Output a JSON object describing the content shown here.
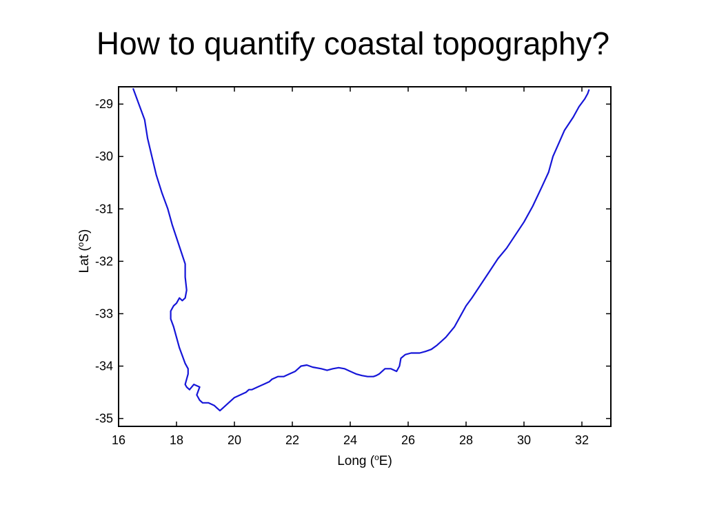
{
  "slide": {
    "title": "How to quantify coastal topography?"
  },
  "chart_data": {
    "type": "line",
    "xlabel": "Long (oE)",
    "ylabel": "Lat (oS)",
    "xlim": [
      16,
      33
    ],
    "ylim": [
      -35.15,
      -28.67
    ],
    "x_ticks": [
      16,
      18,
      20,
      22,
      24,
      26,
      28,
      30,
      32
    ],
    "y_ticks": [
      -29,
      -30,
      -31,
      -32,
      -33,
      -34,
      -35
    ],
    "grid": false,
    "line_color": "#1515d8",
    "series": [
      {
        "x": [
          16.5,
          16.7,
          16.9,
          17.0,
          17.15,
          17.3,
          17.5,
          17.7,
          17.85,
          18.0,
          18.15,
          18.3,
          18.3,
          18.35,
          18.3,
          18.2,
          18.1,
          18.0,
          17.9,
          17.8,
          17.8,
          17.9,
          18.0,
          18.1,
          18.2,
          18.3,
          18.4,
          18.4,
          18.35,
          18.3,
          18.35,
          18.45,
          18.6,
          18.8,
          18.7,
          18.8,
          18.9,
          19.1,
          19.3,
          19.4,
          19.5,
          19.6,
          19.8,
          20.0,
          20.2,
          20.4,
          20.5,
          20.6,
          20.8,
          21.0,
          21.2,
          21.3,
          21.5,
          21.7,
          21.9,
          22.1,
          22.2,
          22.3,
          22.5,
          22.7,
          23.0,
          23.2,
          23.4,
          23.6,
          23.8,
          24.0,
          24.2,
          24.4,
          24.6,
          24.8,
          24.9,
          25.0,
          25.2,
          25.4,
          25.6,
          25.7,
          25.75,
          25.9,
          26.1,
          26.4,
          26.6,
          26.8,
          27.0,
          27.3,
          27.6,
          27.8,
          28.0,
          28.2,
          28.5,
          28.8,
          29.1,
          29.4,
          29.7,
          30.0,
          30.3,
          30.6,
          30.85,
          31.0,
          31.2,
          31.4,
          31.7,
          31.9,
          32.1,
          32.2,
          32.25
        ],
        "y": [
          -28.7,
          -29.0,
          -29.3,
          -29.65,
          -30.0,
          -30.35,
          -30.7,
          -31.0,
          -31.3,
          -31.55,
          -31.8,
          -32.05,
          -32.3,
          -32.55,
          -32.7,
          -32.75,
          -32.7,
          -32.8,
          -32.85,
          -32.95,
          -33.1,
          -33.25,
          -33.45,
          -33.65,
          -33.8,
          -33.95,
          -34.05,
          -34.15,
          -34.25,
          -34.35,
          -34.4,
          -34.45,
          -34.35,
          -34.4,
          -34.55,
          -34.65,
          -34.7,
          -34.7,
          -34.75,
          -34.8,
          -34.85,
          -34.8,
          -34.7,
          -34.6,
          -34.55,
          -34.5,
          -34.45,
          -34.45,
          -34.4,
          -34.35,
          -34.3,
          -34.25,
          -34.2,
          -34.2,
          -34.15,
          -34.1,
          -34.05,
          -34.0,
          -33.98,
          -34.02,
          -34.05,
          -34.08,
          -34.05,
          -34.03,
          -34.05,
          -34.1,
          -34.15,
          -34.18,
          -34.2,
          -34.2,
          -34.18,
          -34.15,
          -34.05,
          -34.05,
          -34.1,
          -34.0,
          -33.85,
          -33.78,
          -33.75,
          -33.75,
          -33.72,
          -33.68,
          -33.6,
          -33.45,
          -33.25,
          -33.05,
          -32.85,
          -32.7,
          -32.45,
          -32.2,
          -31.95,
          -31.75,
          -31.5,
          -31.25,
          -30.95,
          -30.6,
          -30.3,
          -30.0,
          -29.75,
          -29.5,
          -29.25,
          -29.05,
          -28.9,
          -28.8,
          -28.72
        ]
      }
    ]
  }
}
